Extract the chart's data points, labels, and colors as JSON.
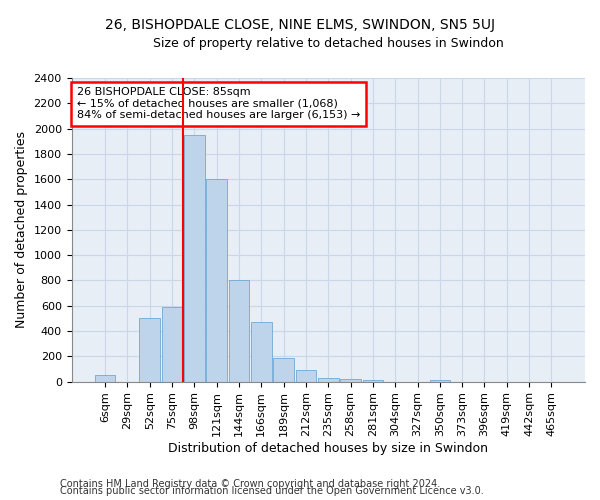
{
  "title_line1": "26, BISHOPDALE CLOSE, NINE ELMS, SWINDON, SN5 5UJ",
  "title_line2": "Size of property relative to detached houses in Swindon",
  "xlabel": "Distribution of detached houses by size in Swindon",
  "ylabel": "Number of detached properties",
  "footnote1": "Contains HM Land Registry data © Crown copyright and database right 2024.",
  "footnote2": "Contains public sector information licensed under the Open Government Licence v3.0.",
  "categories": [
    "6sqm",
    "29sqm",
    "52sqm",
    "75sqm",
    "98sqm",
    "121sqm",
    "144sqm",
    "166sqm",
    "189sqm",
    "212sqm",
    "235sqm",
    "258sqm",
    "281sqm",
    "304sqm",
    "327sqm",
    "350sqm",
    "373sqm",
    "396sqm",
    "419sqm",
    "442sqm",
    "465sqm"
  ],
  "values": [
    55,
    0,
    500,
    590,
    1950,
    1600,
    800,
    470,
    190,
    90,
    30,
    20,
    15,
    0,
    0,
    15,
    0,
    0,
    0,
    0,
    0
  ],
  "bar_color": "#bdd4ea",
  "bar_edge_color": "#6fa8d5",
  "grid_color": "#c8d8e8",
  "background_color": "#e8eef6",
  "annotation_line1": "26 BISHOPDALE CLOSE: 85sqm",
  "annotation_line2": "← 15% of detached houses are smaller (1,068)",
  "annotation_line3": "84% of semi-detached houses are larger (6,153) →",
  "annotation_box_color": "white",
  "annotation_box_edge_color": "red",
  "marker_bar_index": 4,
  "marker_color": "red",
  "ylim": [
    0,
    2400
  ],
  "yticks": [
    0,
    200,
    400,
    600,
    800,
    1000,
    1200,
    1400,
    1600,
    1800,
    2000,
    2200,
    2400
  ],
  "title_fontsize": 10,
  "subtitle_fontsize": 9,
  "tick_fontsize": 8,
  "label_fontsize": 9,
  "footnote_fontsize": 7,
  "annotation_fontsize": 8
}
